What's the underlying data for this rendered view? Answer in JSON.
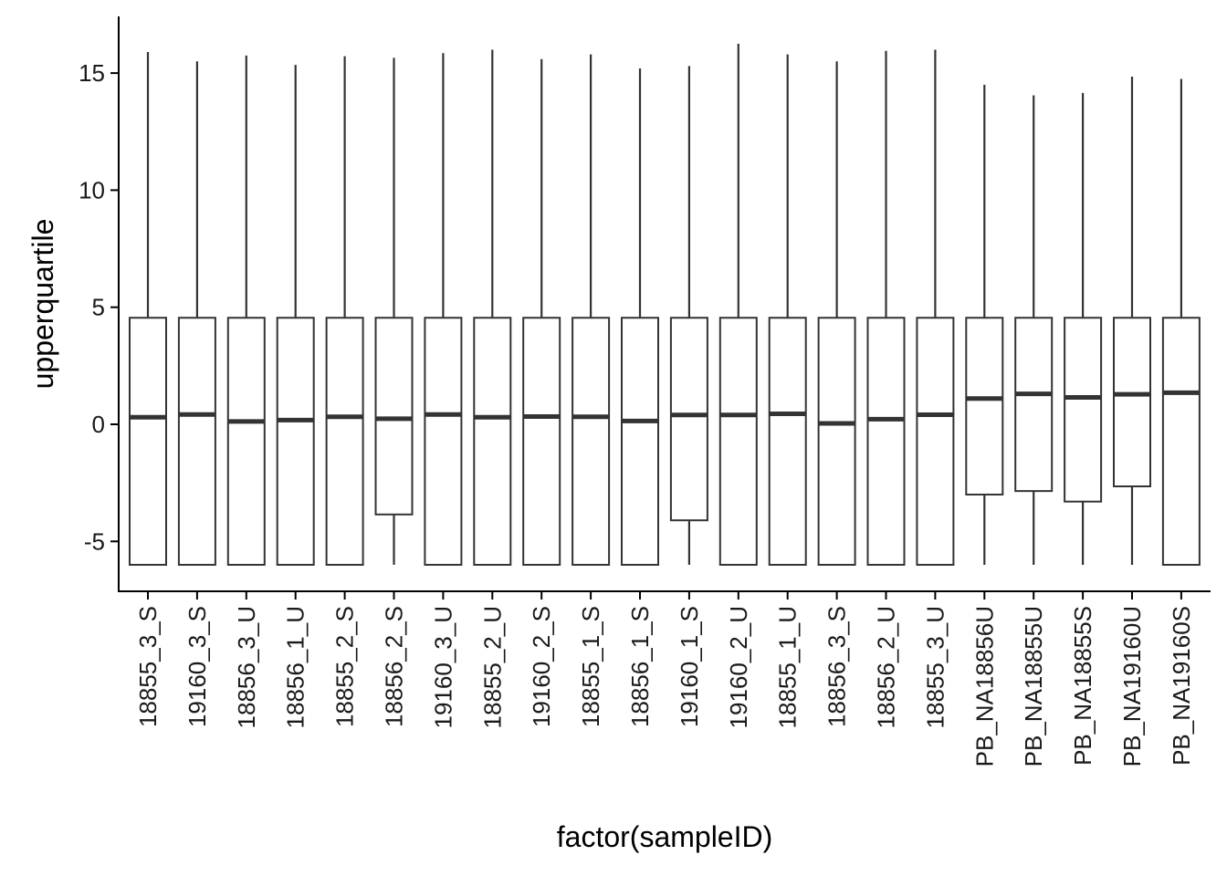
{
  "chart_data": {
    "type": "boxplot",
    "xlabel": "factor(sampleID)",
    "ylabel": "upperquartile",
    "ylim": [
      -7.2,
      17.5
    ],
    "yticks": [
      -5,
      0,
      5,
      10,
      15
    ],
    "ytick_labels": [
      "-5",
      "0",
      "5",
      "10",
      "15"
    ],
    "grid": false,
    "legend": "none",
    "colors": {
      "box_stroke": "#333333",
      "box_fill": "#ffffff",
      "axis": "#000000"
    },
    "categories": [
      "18855_3_S",
      "19160_3_S",
      "18856_3_U",
      "18856_1_U",
      "18855_2_S",
      "18856_2_S",
      "19160_3_U",
      "18855_2_U",
      "19160_2_S",
      "18855_1_S",
      "18856_1_S",
      "19160_1_S",
      "19160_2_U",
      "18855_1_U",
      "18856_3_S",
      "18856_2_U",
      "18855_3_U",
      "PB_NA18856U",
      "PB_NA18855U",
      "PB_NA18855S",
      "PB_NA19160U",
      "PB_NA19160S"
    ],
    "boxes": [
      {
        "min": -6,
        "q1": -6,
        "median": 0.3,
        "q3": 4.55,
        "max": 15.9
      },
      {
        "min": -6,
        "q1": -6,
        "median": 0.42,
        "q3": 4.55,
        "max": 15.5
      },
      {
        "min": -6,
        "q1": -6,
        "median": 0.12,
        "q3": 4.55,
        "max": 15.75
      },
      {
        "min": -6,
        "q1": -6,
        "median": 0.18,
        "q3": 4.55,
        "max": 15.35
      },
      {
        "min": -6,
        "q1": -6,
        "median": 0.32,
        "q3": 4.55,
        "max": 15.72
      },
      {
        "min": -6,
        "q1": -3.85,
        "median": 0.24,
        "q3": 4.55,
        "max": 15.65
      },
      {
        "min": -6,
        "q1": -6,
        "median": 0.42,
        "q3": 4.55,
        "max": 15.85
      },
      {
        "min": -6,
        "q1": -6,
        "median": 0.3,
        "q3": 4.55,
        "max": 16.0
      },
      {
        "min": -6,
        "q1": -6,
        "median": 0.33,
        "q3": 4.55,
        "max": 15.6
      },
      {
        "min": -6,
        "q1": -6,
        "median": 0.32,
        "q3": 4.55,
        "max": 15.8
      },
      {
        "min": -6,
        "q1": -6,
        "median": 0.14,
        "q3": 4.55,
        "max": 15.2
      },
      {
        "min": -6,
        "q1": -4.1,
        "median": 0.4,
        "q3": 4.55,
        "max": 15.3
      },
      {
        "min": -6,
        "q1": -6,
        "median": 0.4,
        "q3": 4.55,
        "max": 16.25
      },
      {
        "min": -6,
        "q1": -6,
        "median": 0.45,
        "q3": 4.55,
        "max": 15.8
      },
      {
        "min": -6,
        "q1": -6,
        "median": 0.04,
        "q3": 4.55,
        "max": 15.5
      },
      {
        "min": -6,
        "q1": -6,
        "median": 0.22,
        "q3": 4.55,
        "max": 15.95
      },
      {
        "min": -6,
        "q1": -6,
        "median": 0.41,
        "q3": 4.55,
        "max": 16.0
      },
      {
        "min": -6,
        "q1": -3.0,
        "median": 1.1,
        "q3": 4.55,
        "max": 14.5
      },
      {
        "min": -6,
        "q1": -2.85,
        "median": 1.3,
        "q3": 4.55,
        "max": 14.05
      },
      {
        "min": -6,
        "q1": -3.3,
        "median": 1.15,
        "q3": 4.55,
        "max": 14.15
      },
      {
        "min": -6,
        "q1": -2.65,
        "median": 1.28,
        "q3": 4.55,
        "max": 14.85
      },
      {
        "min": -6,
        "q1": -6,
        "median": 1.35,
        "q3": 4.55,
        "max": 14.75
      }
    ]
  }
}
